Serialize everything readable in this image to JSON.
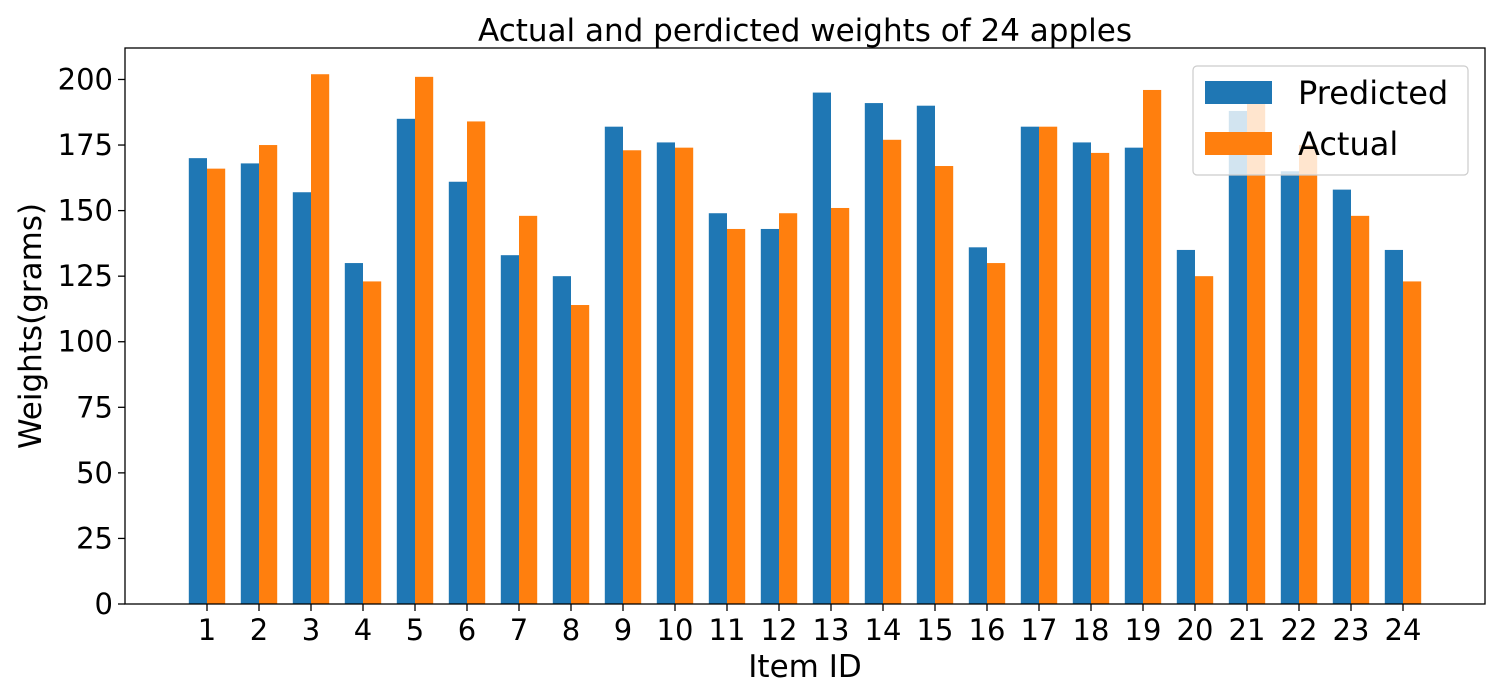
{
  "chart_data": {
    "type": "bar",
    "title": "Actual and perdicted weights of 24 apples",
    "xlabel": "Item ID",
    "ylabel": "Weights(grams)",
    "ylim": [
      0,
      212
    ],
    "yticks": [
      0,
      25,
      50,
      75,
      100,
      125,
      150,
      175,
      200
    ],
    "categories": [
      "1",
      "2",
      "3",
      "4",
      "5",
      "6",
      "7",
      "8",
      "9",
      "10",
      "11",
      "12",
      "13",
      "14",
      "15",
      "16",
      "17",
      "18",
      "19",
      "20",
      "21",
      "22",
      "23",
      "24"
    ],
    "series": [
      {
        "name": "Predicted",
        "color": "#1f77b4",
        "values": [
          170,
          168,
          157,
          130,
          185,
          161,
          133,
          125,
          182,
          176,
          149,
          143,
          195,
          191,
          190,
          136,
          182,
          176,
          174,
          135,
          188,
          165,
          158,
          135
        ]
      },
      {
        "name": "Actual",
        "color": "#ff7f0e",
        "values": [
          166,
          175,
          202,
          123,
          201,
          184,
          148,
          114,
          173,
          174,
          143,
          149,
          151,
          177,
          167,
          130,
          182,
          172,
          196,
          125,
          191,
          175,
          148,
          123
        ]
      }
    ],
    "grid": false,
    "legend_position": "top-right"
  }
}
